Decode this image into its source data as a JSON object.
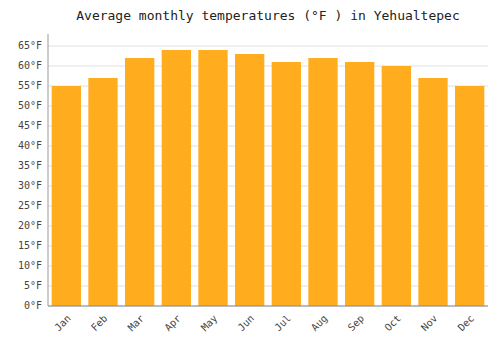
{
  "chart_data": {
    "type": "bar",
    "title": "Average monthly temperatures (°F ) in Yehualtepec",
    "categories": [
      "Jan",
      "Feb",
      "Mar",
      "Apr",
      "May",
      "Jun",
      "Jul",
      "Aug",
      "Sep",
      "Oct",
      "Nov",
      "Dec"
    ],
    "values": [
      55,
      57,
      62,
      64,
      64,
      63,
      61,
      62,
      61,
      60,
      57,
      55
    ],
    "color": "#FFAD1F",
    "ylim": [
      0,
      68
    ],
    "yticks": [
      {
        "value": 0,
        "label": "0°F"
      },
      {
        "value": 5,
        "label": "5°F"
      },
      {
        "value": 10,
        "label": "10°F"
      },
      {
        "value": 15,
        "label": "15°F"
      },
      {
        "value": 20,
        "label": "20°F"
      },
      {
        "value": 25,
        "label": "25°F"
      },
      {
        "value": 30,
        "label": "30°F"
      },
      {
        "value": 35,
        "label": "35°F"
      },
      {
        "value": 40,
        "label": "40°F"
      },
      {
        "value": 45,
        "label": "45°F"
      },
      {
        "value": 50,
        "label": "50°F"
      },
      {
        "value": 55,
        "label": "55°F"
      },
      {
        "value": 60,
        "label": "60°F"
      },
      {
        "value": 65,
        "label": "65°F"
      }
    ],
    "grid": true
  }
}
